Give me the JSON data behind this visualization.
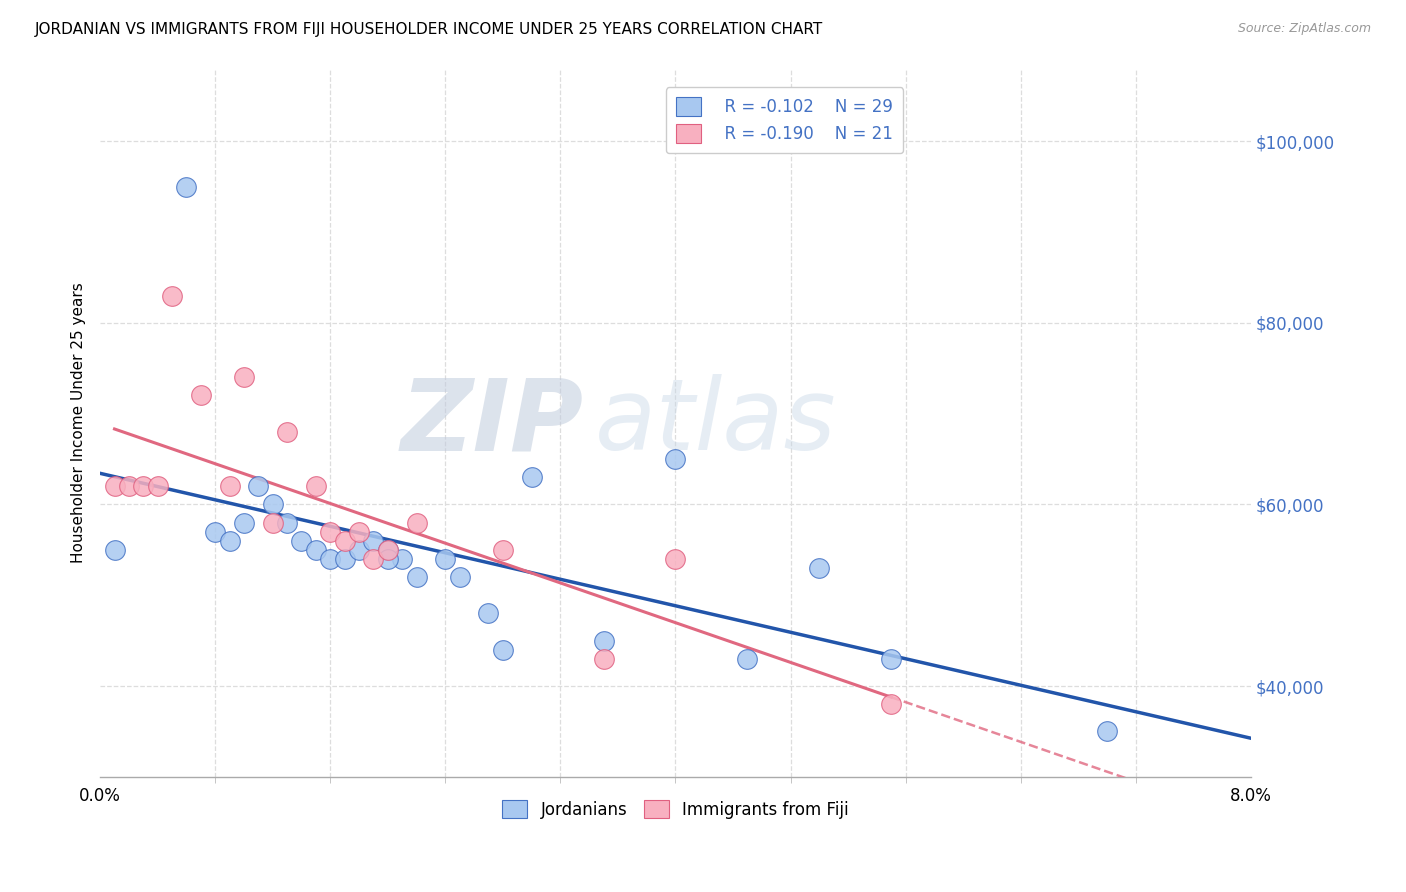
{
  "title": "JORDANIAN VS IMMIGRANTS FROM FIJI HOUSEHOLDER INCOME UNDER 25 YEARS CORRELATION CHART",
  "source": "Source: ZipAtlas.com",
  "ylabel": "Householder Income Under 25 years",
  "xlim": [
    0.0,
    0.08
  ],
  "ylim": [
    30000,
    108000
  ],
  "yticks": [
    40000,
    60000,
    80000,
    100000
  ],
  "ytick_labels": [
    "$40,000",
    "$60,000",
    "$80,000",
    "$100,000"
  ],
  "xtick_labels": [
    "0.0%",
    "8.0%"
  ],
  "legend_r1": "R = -0.102",
  "legend_n1": "N = 29",
  "legend_r2": "R = -0.190",
  "legend_n2": "N = 21",
  "color_jordanian_fill": "#A8C8F0",
  "color_jordanian_edge": "#4472C4",
  "color_fiji_fill": "#F8B0C0",
  "color_fiji_edge": "#E06080",
  "color_line_blue": "#2255AA",
  "color_line_pink": "#E06880",
  "color_label_blue": "#4472C4",
  "watermark_zip": "ZIP",
  "watermark_atlas": "atlas",
  "jordanian_x": [
    0.001,
    0.006,
    0.008,
    0.009,
    0.01,
    0.011,
    0.012,
    0.013,
    0.014,
    0.015,
    0.016,
    0.017,
    0.018,
    0.019,
    0.02,
    0.021,
    0.022,
    0.024,
    0.025,
    0.027,
    0.028,
    0.03,
    0.02,
    0.035,
    0.04,
    0.045,
    0.05,
    0.055,
    0.07
  ],
  "jordanian_y": [
    55000,
    95000,
    57000,
    56000,
    58000,
    62000,
    60000,
    58000,
    56000,
    55000,
    54000,
    54000,
    55000,
    56000,
    55000,
    54000,
    52000,
    54000,
    52000,
    48000,
    44000,
    63000,
    54000,
    45000,
    65000,
    43000,
    53000,
    43000,
    35000
  ],
  "fiji_x": [
    0.001,
    0.002,
    0.003,
    0.004,
    0.005,
    0.007,
    0.009,
    0.01,
    0.012,
    0.013,
    0.015,
    0.016,
    0.017,
    0.018,
    0.019,
    0.02,
    0.022,
    0.028,
    0.035,
    0.04,
    0.055
  ],
  "fiji_y": [
    62000,
    62000,
    62000,
    62000,
    83000,
    72000,
    62000,
    74000,
    58000,
    68000,
    62000,
    57000,
    56000,
    57000,
    54000,
    55000,
    58000,
    55000,
    43000,
    54000,
    38000
  ],
  "background_color": "#FFFFFF",
  "grid_color": "#DDDDDD",
  "title_fontsize": 11,
  "source_fontsize": 9,
  "tick_fontsize": 12,
  "ylabel_fontsize": 11
}
